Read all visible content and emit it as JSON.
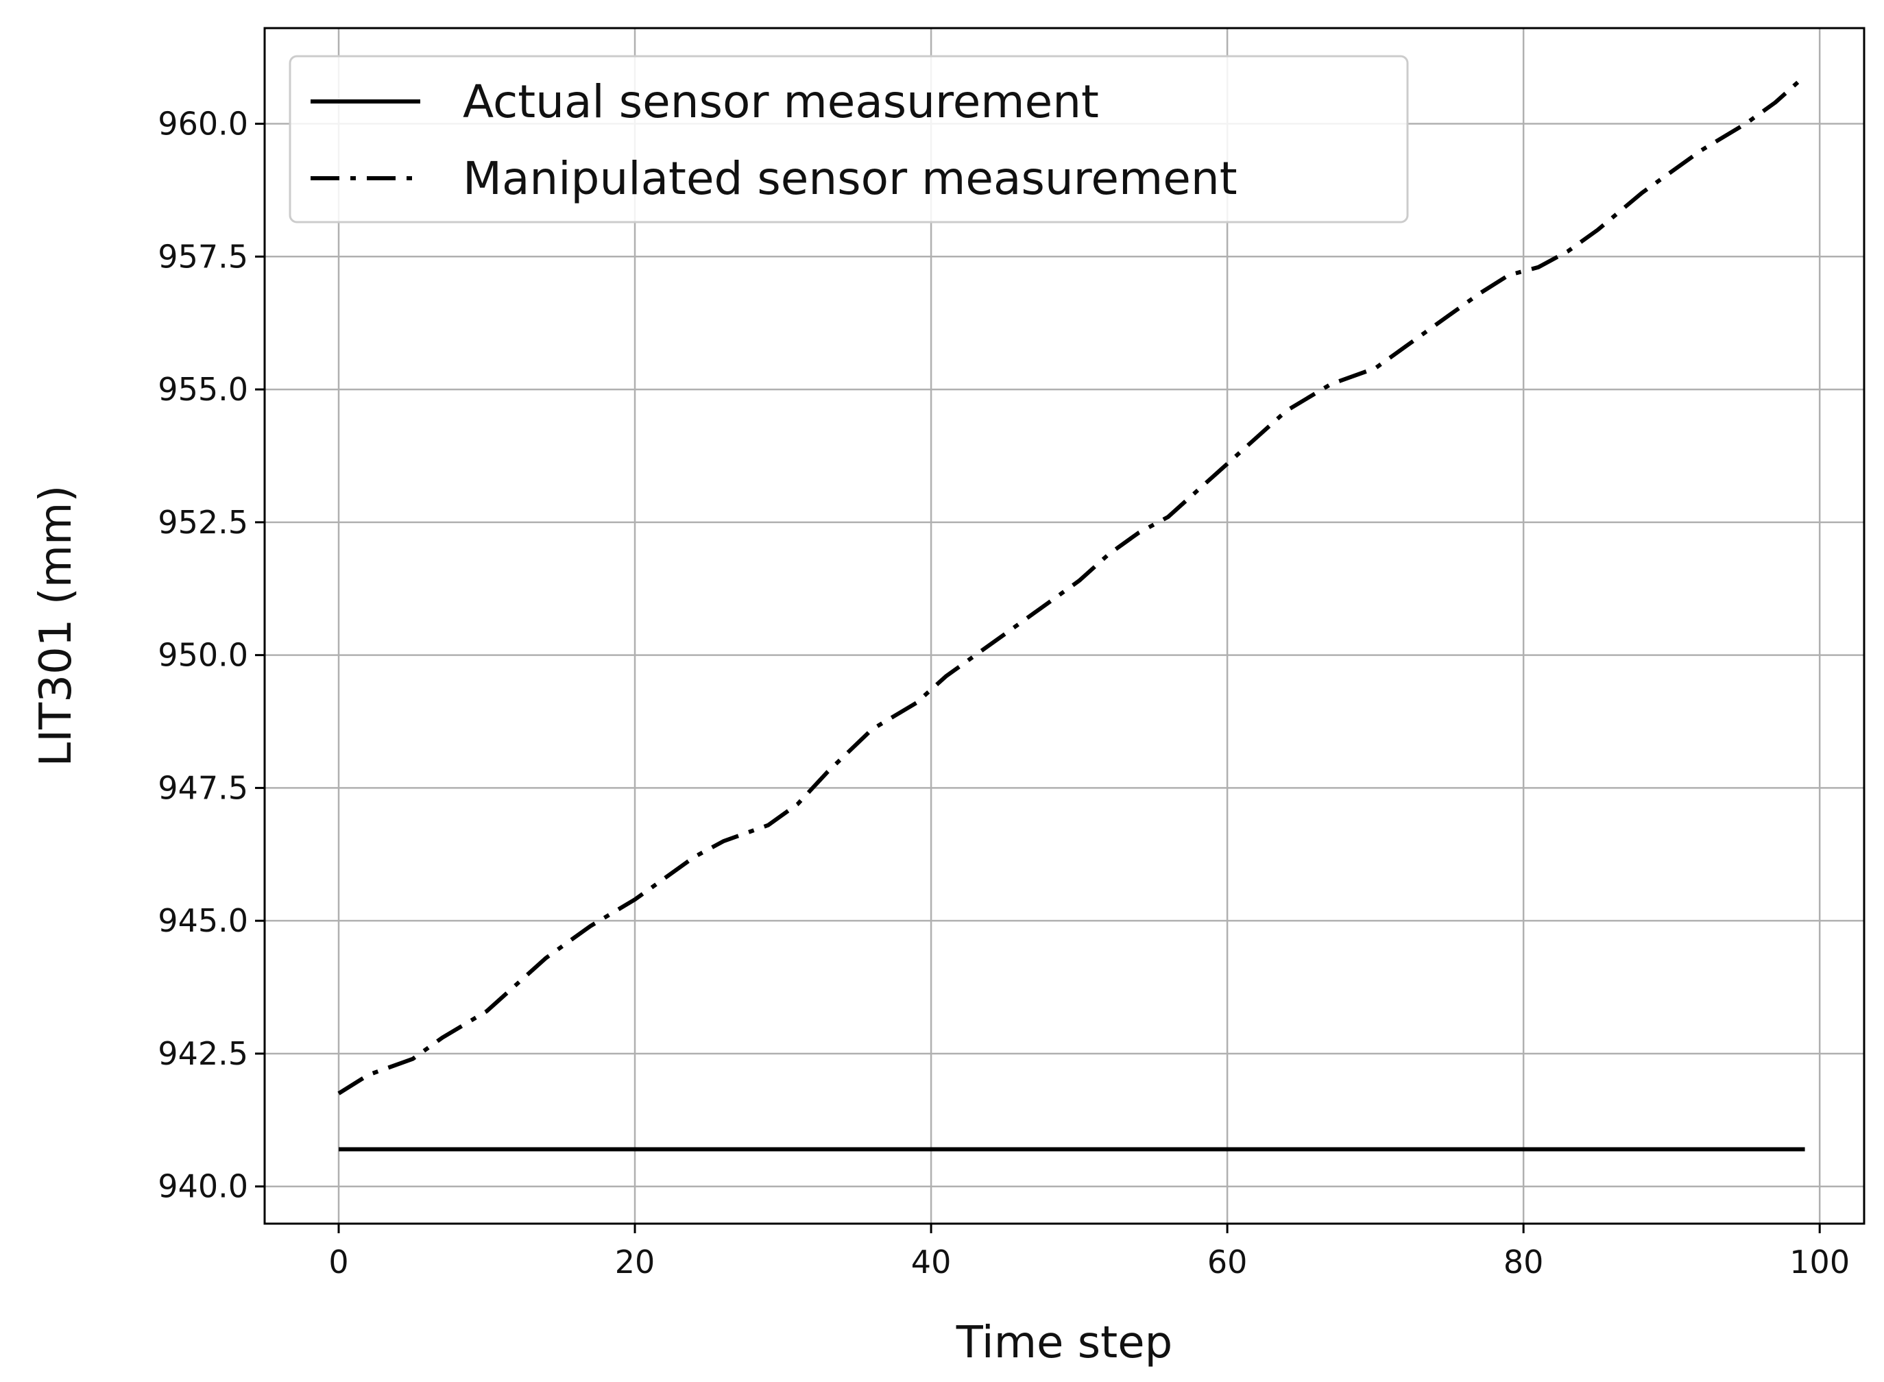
{
  "chart_data": {
    "type": "line",
    "xlabel": "Time step",
    "ylabel": "LIT301 (mm)",
    "xlim": [
      -5,
      103
    ],
    "ylim": [
      939.3,
      961.8
    ],
    "xticks": [
      0,
      20,
      40,
      60,
      80,
      100
    ],
    "yticks": [
      940.0,
      942.5,
      945.0,
      947.5,
      950.0,
      952.5,
      955.0,
      957.5,
      960.0
    ],
    "grid": true,
    "legend_position": "top-left",
    "series": [
      {
        "name": "Actual sensor measurement",
        "style": "solid",
        "color": "#000000",
        "x": [
          0,
          99
        ],
        "y": [
          940.7,
          940.7
        ]
      },
      {
        "name": "Manipulated sensor measurement",
        "style": "dashdot",
        "color": "#000000",
        "x": [
          0,
          2,
          5,
          7,
          10,
          12,
          14,
          17,
          20,
          22,
          24,
          26,
          29,
          31,
          33,
          36,
          39,
          41,
          43,
          45,
          47,
          50,
          52,
          54,
          56,
          58,
          60,
          62,
          64,
          67,
          70,
          72,
          75,
          77,
          79,
          81,
          83,
          85,
          88,
          90,
          92,
          95,
          97,
          99
        ],
        "y": [
          941.75,
          942.1,
          942.4,
          942.8,
          943.3,
          943.8,
          944.3,
          944.9,
          945.4,
          945.8,
          946.2,
          946.5,
          946.8,
          947.2,
          947.8,
          948.6,
          949.1,
          949.6,
          950.0,
          950.4,
          950.8,
          951.4,
          951.9,
          952.3,
          952.6,
          953.1,
          953.6,
          954.1,
          954.6,
          955.1,
          955.4,
          955.8,
          956.4,
          956.8,
          957.15,
          957.3,
          957.6,
          958.0,
          958.7,
          959.1,
          959.5,
          960.0,
          960.4,
          960.9
        ]
      }
    ]
  }
}
